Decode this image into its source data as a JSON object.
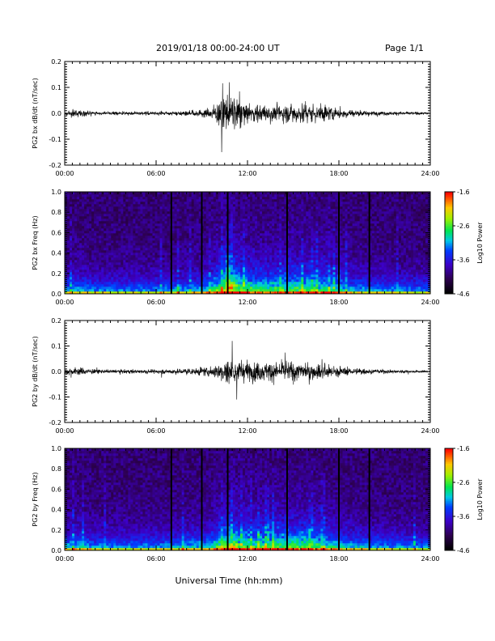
{
  "header": {
    "title": "2019/01/18  00:00-24:00 UT",
    "page": "Page 1/1"
  },
  "footer": {
    "xlabel": "Universal Time (hh:mm)"
  },
  "chart_data": [
    {
      "type": "line",
      "ylabel": "PG2 bx dB/dt (nT/sec)",
      "xlim": [
        "00:00",
        "24:00"
      ],
      "ylim": [
        -0.2,
        0.2
      ],
      "x_ticks": [
        "00:00",
        "06:00",
        "12:00",
        "18:00",
        "24:00"
      ],
      "y_ticks": [
        "0.2",
        "0.1",
        "0.0",
        "-0.1",
        "-0.2"
      ],
      "envelope": {
        "hours": [
          0,
          1,
          2,
          3,
          4,
          5,
          6,
          7,
          8,
          9,
          9.5,
          10,
          10.5,
          11,
          11.5,
          12,
          13,
          14,
          15,
          16,
          17,
          18,
          19,
          20,
          21,
          22,
          23,
          24
        ],
        "amp": [
          0.015,
          0.02,
          0.01,
          0.008,
          0.01,
          0.01,
          0.01,
          0.012,
          0.015,
          0.025,
          0.03,
          0.06,
          0.09,
          0.11,
          0.07,
          0.06,
          0.05,
          0.055,
          0.06,
          0.06,
          0.05,
          0.035,
          0.02,
          0.015,
          0.012,
          0.01,
          0.008,
          0.006
        ]
      },
      "peaks": [
        {
          "hour": 10.8,
          "value": 0.12
        },
        {
          "hour": 10.3,
          "value": -0.15
        }
      ]
    },
    {
      "type": "heatmap",
      "ylabel": "PG2 bx Freq (Hz)",
      "xlim": [
        "00:00",
        "24:00"
      ],
      "ylim": [
        0.0,
        1.0
      ],
      "x_ticks": [
        "00:00",
        "06:00",
        "12:00",
        "18:00",
        "24:00"
      ],
      "y_ticks": [
        "1.0",
        "0.8",
        "0.6",
        "0.4",
        "0.2",
        "0.0"
      ],
      "colorbar": {
        "label": "Log10 Power",
        "ticks": [
          "-1.6",
          "-2.6",
          "-3.6",
          "-4.6"
        ],
        "range": [
          -4.6,
          -1.6
        ]
      },
      "data_gaps_hours": [
        7.0,
        9.0,
        10.7,
        14.6,
        18.0,
        20.0
      ]
    },
    {
      "type": "line",
      "ylabel": "PG2 by dB/dt (nT/sec)",
      "xlim": [
        "00:00",
        "24:00"
      ],
      "ylim": [
        -0.2,
        0.2
      ],
      "x_ticks": [
        "00:00",
        "06:00",
        "12:00",
        "18:00",
        "24:00"
      ],
      "y_ticks": [
        "0.2",
        "0.1",
        "0.0",
        "-0.1",
        "-0.2"
      ],
      "envelope": {
        "hours": [
          0,
          1,
          2,
          3,
          4,
          5,
          6,
          7,
          8,
          9,
          9.5,
          10,
          10.5,
          11,
          11.5,
          12,
          13,
          14,
          15,
          16,
          17,
          18,
          19,
          20,
          21,
          22,
          23,
          24
        ],
        "amp": [
          0.02,
          0.025,
          0.012,
          0.01,
          0.012,
          0.012,
          0.012,
          0.015,
          0.02,
          0.025,
          0.03,
          0.05,
          0.07,
          0.08,
          0.065,
          0.06,
          0.055,
          0.06,
          0.06,
          0.055,
          0.045,
          0.03,
          0.02,
          0.015,
          0.012,
          0.01,
          0.008,
          0.006
        ]
      },
      "peaks": [
        {
          "hour": 11.0,
          "value": 0.12
        },
        {
          "hour": 11.3,
          "value": -0.11
        }
      ]
    },
    {
      "type": "heatmap",
      "ylabel": "PG2 by Freq (Hz)",
      "xlim": [
        "00:00",
        "24:00"
      ],
      "ylim": [
        0.0,
        1.0
      ],
      "x_ticks": [
        "00:00",
        "06:00",
        "12:00",
        "18:00",
        "24:00"
      ],
      "y_ticks": [
        "1.0",
        "0.8",
        "0.6",
        "0.4",
        "0.2",
        "0.0"
      ],
      "colorbar": {
        "label": "Log10 Power",
        "ticks": [
          "-1.6",
          "-2.6",
          "-3.6",
          "-4.6"
        ],
        "range": [
          -4.6,
          -1.6
        ]
      },
      "data_gaps_hours": [
        7.0,
        9.0,
        10.7,
        14.6,
        18.0,
        20.0
      ]
    }
  ]
}
